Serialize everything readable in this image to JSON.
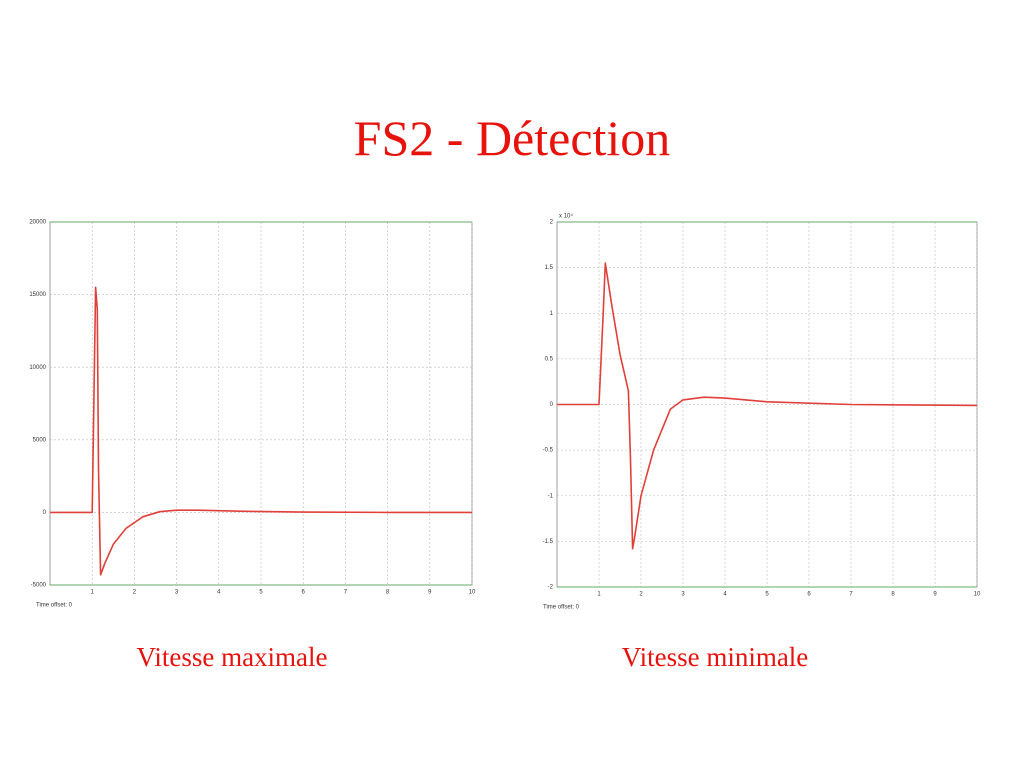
{
  "title": "FS2 - Détection",
  "chart_data": [
    {
      "type": "line",
      "caption": "Vitesse maximale",
      "note": "Time offset: 0",
      "color": "#e0403a",
      "x": [
        0,
        1.0,
        1.08,
        1.12,
        1.15,
        1.2,
        1.3,
        1.5,
        1.8,
        2.2,
        2.6,
        3.0,
        3.5,
        4.5,
        6,
        8,
        10
      ],
      "values": [
        0,
        0,
        15500,
        14000,
        3000,
        -4300,
        -3500,
        -2200,
        -1100,
        -300,
        50,
        150,
        150,
        80,
        20,
        0,
        0
      ],
      "xlim": [
        0,
        10
      ],
      "xticks": [
        1,
        2,
        3,
        4,
        5,
        6,
        7,
        8,
        9,
        10
      ],
      "ylim": [
        -5000,
        20000
      ],
      "yticks": [
        -5000,
        0,
        5000,
        10000,
        15000,
        20000
      ],
      "grid": true
    },
    {
      "type": "line",
      "caption": "Vitesse minimale",
      "note": "Time offset: 0",
      "y_multiplier": "x 10⁴",
      "color": "#e0403a",
      "x": [
        0,
        1.0,
        1.1,
        1.15,
        1.3,
        1.5,
        1.7,
        1.75,
        1.8,
        1.85,
        2.0,
        2.3,
        2.7,
        3.0,
        3.5,
        4,
        5,
        7,
        10
      ],
      "values": [
        0,
        0,
        1.0,
        1.55,
        1.1,
        0.55,
        0.15,
        -0.6,
        -1.58,
        -1.45,
        -1.0,
        -0.5,
        -0.05,
        0.05,
        0.08,
        0.07,
        0.03,
        0,
        -0.01
      ],
      "xlim": [
        0,
        10
      ],
      "xticks": [
        1,
        2,
        3,
        4,
        5,
        6,
        7,
        8,
        9,
        10
      ],
      "ylim": [
        -2,
        2
      ],
      "yticks": [
        -2,
        -1.5,
        -1,
        -0.5,
        0,
        0.5,
        1,
        1.5,
        2
      ],
      "grid": true
    }
  ]
}
